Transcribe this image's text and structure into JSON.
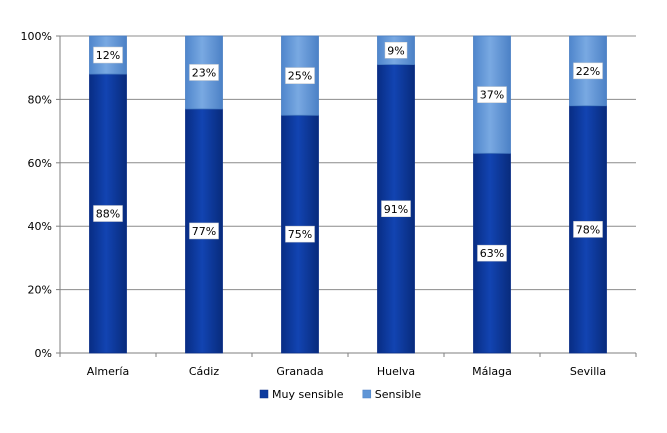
{
  "chart_data": {
    "type": "bar",
    "stacked": "percent",
    "categories": [
      "Almería",
      "Cádiz",
      "Granada",
      "Huelva",
      "Málaga",
      "Sevilla"
    ],
    "series": [
      {
        "name": "Muy sensible",
        "values": [
          88,
          77,
          75,
          91,
          63,
          78
        ],
        "labels": [
          "88%",
          "77%",
          "75%",
          "91%",
          "63%",
          "78%"
        ],
        "color": "#0b3a9e"
      },
      {
        "name": "Sensible",
        "values": [
          12,
          23,
          25,
          9,
          37,
          22
        ],
        "labels": [
          "12%",
          "23%",
          "25%",
          "9%",
          "37%",
          "22%"
        ],
        "color": "#5f95d6"
      }
    ],
    "ylim": [
      0,
      100
    ],
    "yticks": [
      0,
      20,
      40,
      60,
      80,
      100
    ],
    "ytick_labels": [
      "0%",
      "20%",
      "40%",
      "60%",
      "80%",
      "100%"
    ],
    "grid": true,
    "legend_position": "bottom",
    "grid_color": "#8c8c8c",
    "axis_color": "#7f7f7f"
  }
}
